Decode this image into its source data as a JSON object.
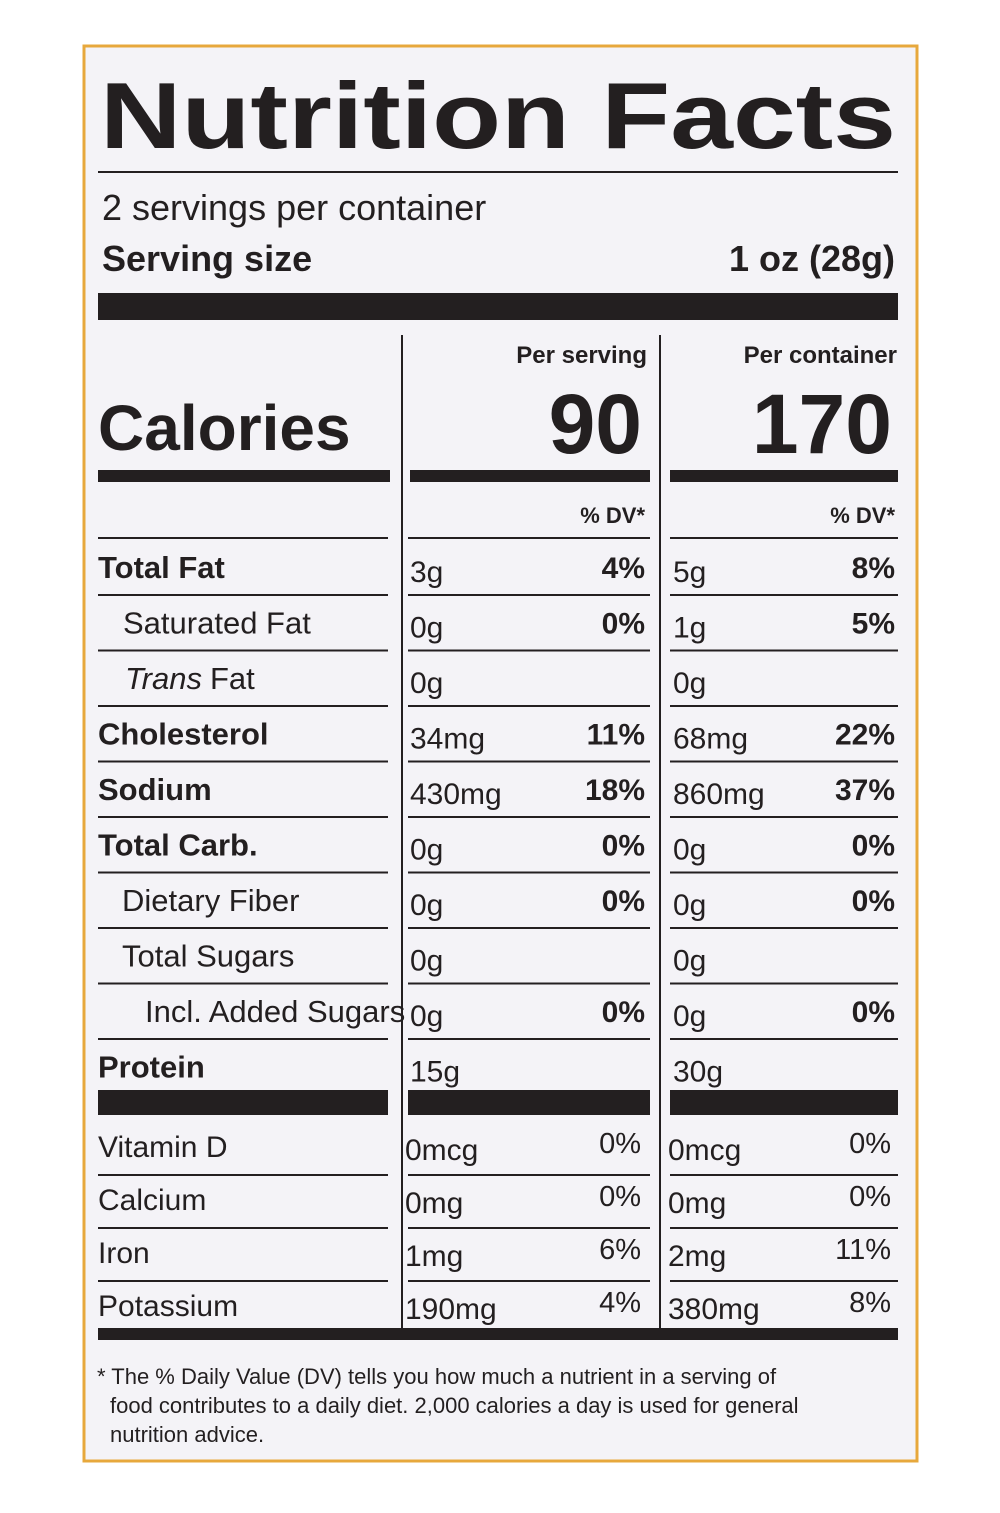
{
  "title": "Nutrition Facts",
  "servings": "2 servings per container",
  "serving_size_label": "Serving size",
  "serving_size": "1 oz (28g)",
  "calories_label": "Calories",
  "columns": [
    {
      "heading": "Per serving",
      "calories": "90",
      "dv_header": "% DV*"
    },
    {
      "heading": "Per container",
      "calories": "170",
      "dv_header": "% DV*"
    }
  ],
  "nutrients": [
    {
      "name": "Total Fat",
      "values": [
        [
          "3g",
          "4%"
        ],
        [
          "5g",
          "8%"
        ]
      ]
    },
    {
      "name": "Saturated Fat",
      "values": [
        [
          "0g",
          "0%"
        ],
        [
          "1g",
          "5%"
        ]
      ]
    },
    {
      "name_italic": "Trans",
      "name": "Fat",
      "values": [
        [
          "0g",
          null
        ],
        [
          "0g",
          null
        ]
      ]
    },
    {
      "name": "Cholesterol",
      "values": [
        [
          "34mg",
          "11%"
        ],
        [
          "68mg",
          "22%"
        ]
      ]
    },
    {
      "name": "Sodium",
      "values": [
        [
          "430mg",
          "18%"
        ],
        [
          "860mg",
          "37%"
        ]
      ]
    },
    {
      "name": "Total Carb.",
      "values": [
        [
          "0g",
          "0%"
        ],
        [
          "0g",
          "0%"
        ]
      ]
    },
    {
      "name": "Dietary Fiber",
      "values": [
        [
          "0g",
          "0%"
        ],
        [
          "0g",
          "0%"
        ]
      ]
    },
    {
      "name": "Total Sugars",
      "values": [
        [
          "0g",
          null
        ],
        [
          "0g",
          null
        ]
      ]
    },
    {
      "name": "Incl. Added Sugars",
      "values": [
        [
          "0g",
          "0%"
        ],
        [
          "0g",
          "0%"
        ]
      ]
    },
    {
      "name": "Protein",
      "values": [
        [
          "15g",
          null
        ],
        [
          "30g",
          null
        ]
      ]
    }
  ],
  "vitamins": [
    {
      "name": "Vitamin D",
      "values": [
        [
          "0mcg",
          "0%"
        ],
        [
          "0mcg",
          "0%"
        ]
      ]
    },
    {
      "name": "Calcium",
      "values": [
        [
          "0mg",
          "0%"
        ],
        [
          "0mg",
          "0%"
        ]
      ]
    },
    {
      "name": "Iron",
      "values": [
        [
          "1mg",
          "6%"
        ],
        [
          "2mg",
          "11%"
        ]
      ]
    },
    {
      "name": "Potassium",
      "values": [
        [
          "190mg",
          "4%"
        ],
        [
          "380mg",
          "8%"
        ]
      ]
    }
  ],
  "footnote": [
    "* The % Daily Value (DV) tells you how much a nutrient in a serving of",
    "food contributes to a daily diet. 2,000 calories a day is used for general",
    "nutrition advice."
  ]
}
